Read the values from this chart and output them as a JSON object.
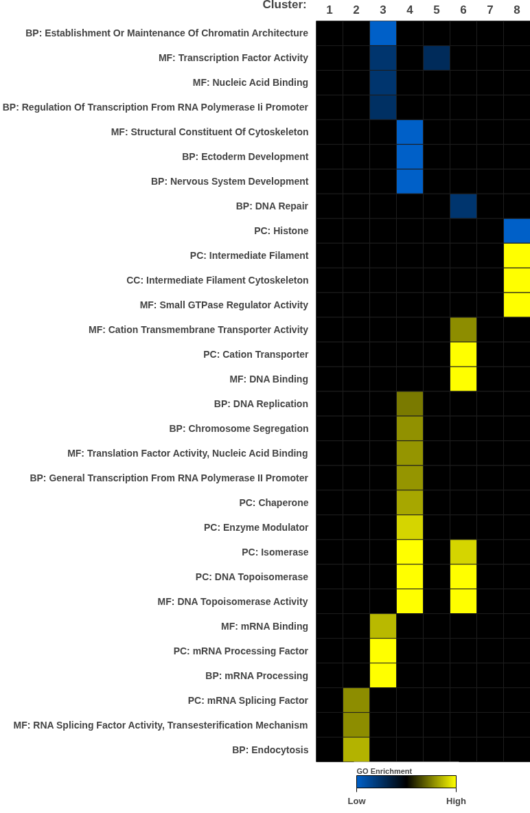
{
  "chart_data": {
    "type": "heatmap",
    "xlabel": "Cluster:",
    "clabel": "GO Enrichment",
    "categories": [
      "1",
      "2",
      "3",
      "4",
      "5",
      "6",
      "7",
      "8"
    ],
    "y_categories": [
      "BP: Establishment Or Maintenance Of Chromatin Architecture",
      "MF: Transcription Factor Activity",
      "MF: Nucleic Acid Binding",
      "BP: Regulation Of Transcription From RNA Polymerase Ii Promoter",
      "MF: Structural Constituent Of Cytoskeleton",
      "BP: Ectoderm Development",
      "BP: Nervous System Development",
      "BP: DNA Repair",
      "PC: Histone",
      "PC: Intermediate Filament",
      "CC: Intermediate Filament Cytoskeleton",
      "MF: Small GTPase Regulator Activity",
      "MF: Cation Transmembrane Transporter Activity",
      "PC: Cation Transporter",
      "MF: DNA Binding",
      "BP: DNA Replication",
      "BP: Chromosome Segregation",
      "MF: Translation Factor Activity, Nucleic Acid Binding",
      "BP: General Transcription From RNA Polymerase II Promoter",
      "PC: Chaperone",
      "PC: Enzyme Modulator",
      "PC: Isomerase",
      "PC: DNA Topoisomerase",
      "MF: DNA Topoisomerase Activity",
      "MF: mRNA Binding",
      "PC: mRNA Processing Factor",
      "BP: mRNA Processing",
      "PC: mRNA Splicing Factor",
      "MF: RNA Splicing Factor Activity, Transesterification Mechanism",
      "BP: Endocytosis"
    ],
    "cells": [
      [
        0,
        0,
        -1,
        0,
        0,
        0,
        0,
        0
      ],
      [
        0,
        0,
        -0.55,
        0,
        -0.45,
        0,
        0,
        0
      ],
      [
        0,
        0,
        -0.55,
        0,
        0,
        0,
        0,
        0
      ],
      [
        0,
        0,
        -0.5,
        0,
        0,
        0,
        0,
        0
      ],
      [
        0,
        0,
        0,
        -1,
        0,
        0,
        0,
        0
      ],
      [
        0,
        0,
        0,
        -1,
        0,
        0,
        0,
        0
      ],
      [
        0,
        0,
        0,
        -1,
        0,
        0,
        0,
        0
      ],
      [
        0,
        0,
        0,
        0,
        0,
        -0.55,
        0,
        0
      ],
      [
        0,
        0,
        0,
        0,
        0,
        0,
        0,
        -1
      ],
      [
        0,
        0,
        0,
        0,
        0,
        0,
        0,
        1
      ],
      [
        0,
        0,
        0,
        0,
        0,
        0,
        0,
        1
      ],
      [
        0,
        0,
        0,
        0,
        0,
        0,
        0,
        1
      ],
      [
        0,
        0,
        0,
        0,
        0,
        0.55,
        0,
        0
      ],
      [
        0,
        0,
        0,
        0,
        0,
        1,
        0,
        0
      ],
      [
        0,
        0,
        0,
        0,
        0,
        1,
        0,
        0
      ],
      [
        0,
        0,
        0,
        0.48,
        0,
        0,
        0,
        0
      ],
      [
        0,
        0,
        0,
        0.57,
        0,
        0,
        0,
        0
      ],
      [
        0,
        0,
        0,
        0.58,
        0,
        0,
        0,
        0
      ],
      [
        0,
        0,
        0,
        0.58,
        0,
        0,
        0,
        0
      ],
      [
        0,
        0,
        0,
        0.65,
        0,
        0,
        0,
        0
      ],
      [
        0,
        0,
        0,
        0.83,
        0,
        0,
        0,
        0
      ],
      [
        0,
        0,
        0,
        1,
        0,
        0.83,
        0,
        0
      ],
      [
        0,
        0,
        0,
        1,
        0,
        1,
        0,
        0
      ],
      [
        0,
        0,
        0,
        1,
        0,
        1,
        0,
        0
      ],
      [
        0,
        0,
        0.72,
        0,
        0,
        0,
        0,
        0
      ],
      [
        0,
        0,
        1,
        0,
        0,
        0,
        0,
        0
      ],
      [
        0,
        0,
        1,
        0,
        0,
        0,
        0,
        0
      ],
      [
        0,
        0.55,
        0,
        0,
        0,
        0,
        0,
        0
      ],
      [
        0,
        0.55,
        0,
        0,
        0,
        0,
        0,
        0
      ],
      [
        0,
        0.7,
        0,
        0,
        0,
        0,
        0,
        0
      ]
    ],
    "clim": [
      -1,
      1
    ],
    "cticks": [
      {
        "value": -1,
        "label": "Low"
      },
      {
        "value": 1,
        "label": "High"
      }
    ]
  }
}
